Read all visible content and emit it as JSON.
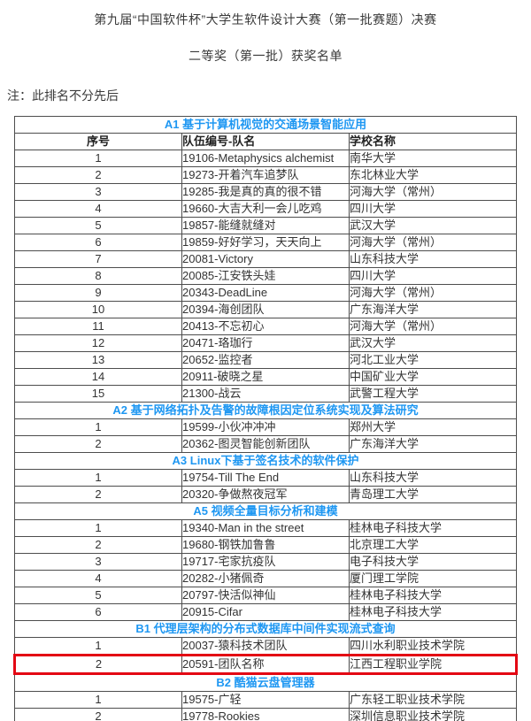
{
  "page": {
    "title": "第九届“中国软件杯”大学生软件设计大赛（第一批赛题）决赛",
    "subtitle": "二等奖（第一批）获奖名单",
    "note": "注：此排名不分先后"
  },
  "colors": {
    "section_header_blue": "#1e97f2",
    "highlight_red": "#e30613",
    "table_border": "#4d4d4d"
  },
  "table": {
    "columns": [
      "序号",
      "队伍编号-队名",
      "学校名称"
    ],
    "sections": [
      {
        "header": "A1 基于计算机视觉的交通场景智能应用",
        "rows": [
          [
            "1",
            "19106-Metaphysics alchemist",
            "南华大学"
          ],
          [
            "2",
            "19273-开着汽车追梦队",
            "东北林业大学"
          ],
          [
            "3",
            "19285-我是真的真的很不错",
            "河海大学（常州）"
          ],
          [
            "4",
            "19660-大吉大利一会儿吃鸡",
            "四川大学"
          ],
          [
            "5",
            "19857-能缝就缝对",
            "武汉大学"
          ],
          [
            "6",
            "19859-好好学习，天天向上",
            "河海大学（常州）"
          ],
          [
            "7",
            "20081-Victory",
            "山东科技大学"
          ],
          [
            "8",
            "20085-江安铁头娃",
            "四川大学"
          ],
          [
            "9",
            "20343-DeadLine",
            "河海大学（常州）"
          ],
          [
            "10",
            "20394-海创团队",
            "广东海洋大学"
          ],
          [
            "11",
            "20413-不忘初心",
            "河海大学（常州）"
          ],
          [
            "12",
            "20471-珞珈行",
            "武汉大学"
          ],
          [
            "13",
            "20652-监控者",
            "河北工业大学"
          ],
          [
            "14",
            "20911-破晓之星",
            "中国矿业大学"
          ],
          [
            "15",
            "21300-战云",
            "武警工程大学"
          ]
        ]
      },
      {
        "header": "A2 基于网络拓扑及告警的故障根因定位系统实现及算法研究",
        "rows": [
          [
            "1",
            "19599-小伙冲冲冲",
            "郑州大学"
          ],
          [
            "2",
            "20362-图灵智能创新团队",
            "广东海洋大学"
          ]
        ]
      },
      {
        "header": "A3 Linux下基于签名技术的软件保护",
        "rows": [
          [
            "1",
            "19754-Till The End",
            "山东科技大学"
          ],
          [
            "2",
            "20320-争做熬夜冠军",
            "青岛理工大学"
          ]
        ]
      },
      {
        "header": "A5 视频全量目标分析和建模",
        "rows": [
          [
            "1",
            "19340-Man in the street",
            "桂林电子科技大学"
          ],
          [
            "2",
            "19680-钢铁加鲁鲁",
            "北京理工大学"
          ],
          [
            "3",
            "19717-宅家抗疫队",
            "电子科技大学"
          ],
          [
            "4",
            "20282-小猪佩奇",
            "厦门理工学院"
          ],
          [
            "5",
            "20797-快活似神仙",
            "桂林电子科技大学"
          ],
          [
            "6",
            "20915-Cifar",
            "桂林电子科技大学"
          ]
        ]
      },
      {
        "header": "B1 代理层架构的分布式数据库中间件实现流式查询",
        "highlight_row": 1,
        "rows": [
          [
            "1",
            "20037-猿科技术团队",
            "四川水利职业技术学院"
          ],
          [
            "2",
            "20591-团队名称",
            "江西工程职业学院"
          ]
        ]
      },
      {
        "header": "B2 酷猫云盘管理器",
        "rows": [
          [
            "1",
            "19575-广轻",
            "广东轻工职业技术学院"
          ],
          [
            "2",
            "19778-Rookies",
            "深圳信息职业技术学院"
          ]
        ]
      }
    ]
  }
}
